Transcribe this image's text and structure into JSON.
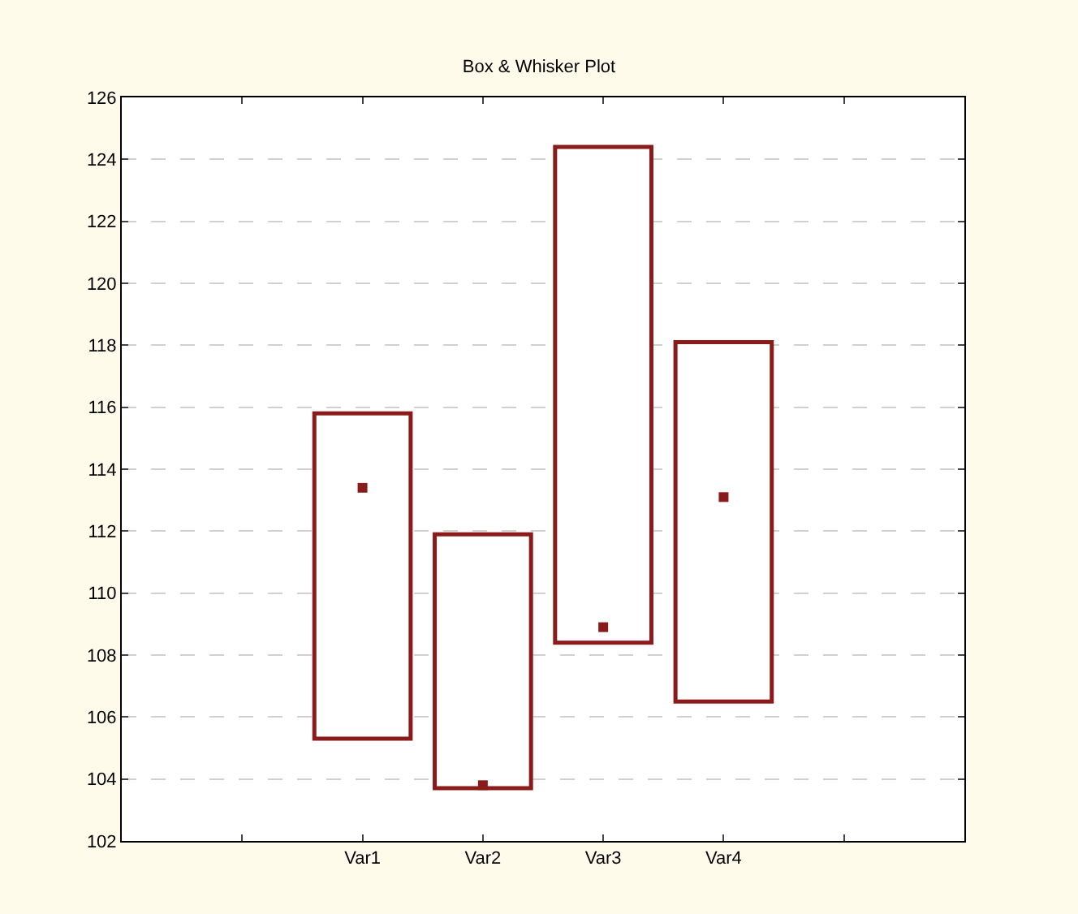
{
  "chart_data": {
    "type": "bar",
    "title": "Box & Whisker Plot",
    "categories": [
      null,
      "Var1",
      "Var2",
      "Var3",
      "Var4",
      null
    ],
    "ylim": [
      102,
      126
    ],
    "yticks": [
      102,
      104,
      106,
      108,
      110,
      112,
      114,
      116,
      118,
      120,
      122,
      124,
      126
    ],
    "grid": "y",
    "series": [
      {
        "color": "#8b1a1a",
        "values": [
          null,
          10.5,
          8.2,
          16.0,
          11.6,
          null
        ],
        "base": [
          null,
          105.3,
          103.7,
          108.4,
          106.5,
          null
        ]
      },
      {
        "type": "scatter",
        "color": "#8b1a1a",
        "marker": "square",
        "values": [
          null,
          113.4,
          103.8,
          108.9,
          113.1,
          null
        ]
      }
    ]
  }
}
